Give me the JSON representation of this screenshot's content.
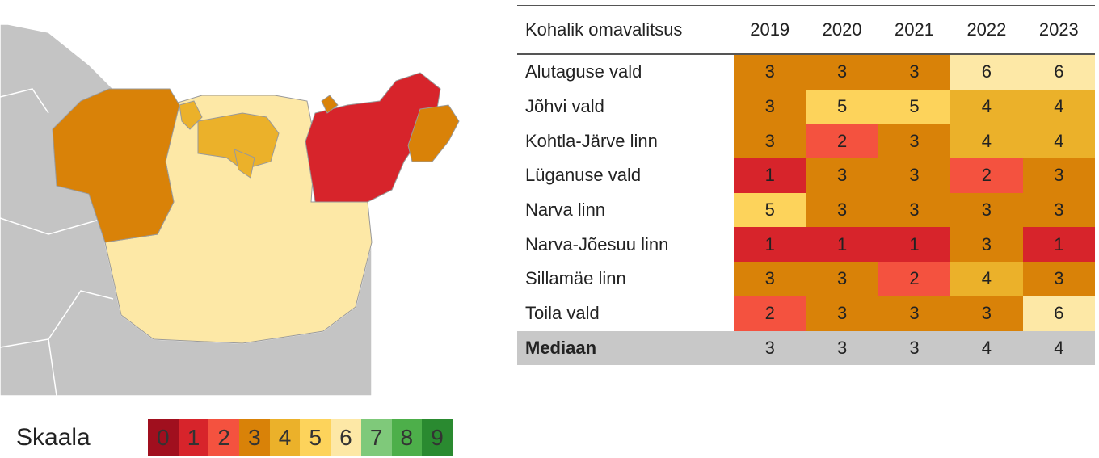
{
  "table": {
    "header": [
      "Kohalik omavalitsus",
      "2019",
      "2020",
      "2021",
      "2022",
      "2023"
    ],
    "rows": [
      [
        "Alutaguse vald",
        3,
        3,
        3,
        6,
        6
      ],
      [
        "Jõhvi vald",
        3,
        5,
        5,
        4,
        4
      ],
      [
        "Kohtla-Järve linn",
        3,
        2,
        3,
        4,
        4
      ],
      [
        "Lüganuse vald",
        1,
        3,
        3,
        2,
        3
      ],
      [
        "Narva linn",
        5,
        3,
        3,
        3,
        3
      ],
      [
        "Narva-Jõesuu linn",
        1,
        1,
        1,
        3,
        1
      ],
      [
        "Sillamäe linn",
        3,
        3,
        2,
        4,
        3
      ],
      [
        "Toila vald",
        2,
        3,
        3,
        3,
        6
      ]
    ],
    "median": {
      "label": "Mediaan",
      "values": [
        3,
        3,
        3,
        4,
        4
      ]
    }
  },
  "scale": {
    "label": "Skaala",
    "values": [
      0,
      1,
      2,
      3,
      4,
      5,
      6,
      7,
      8,
      9
    ],
    "colors": [
      "#a00f1e",
      "#d7242b",
      "#f4523f",
      "#d98208",
      "#ebb12a",
      "#fdd35b",
      "#fde8a6",
      "#7fc97a",
      "#4daf4a",
      "#2a8a30"
    ]
  }
}
